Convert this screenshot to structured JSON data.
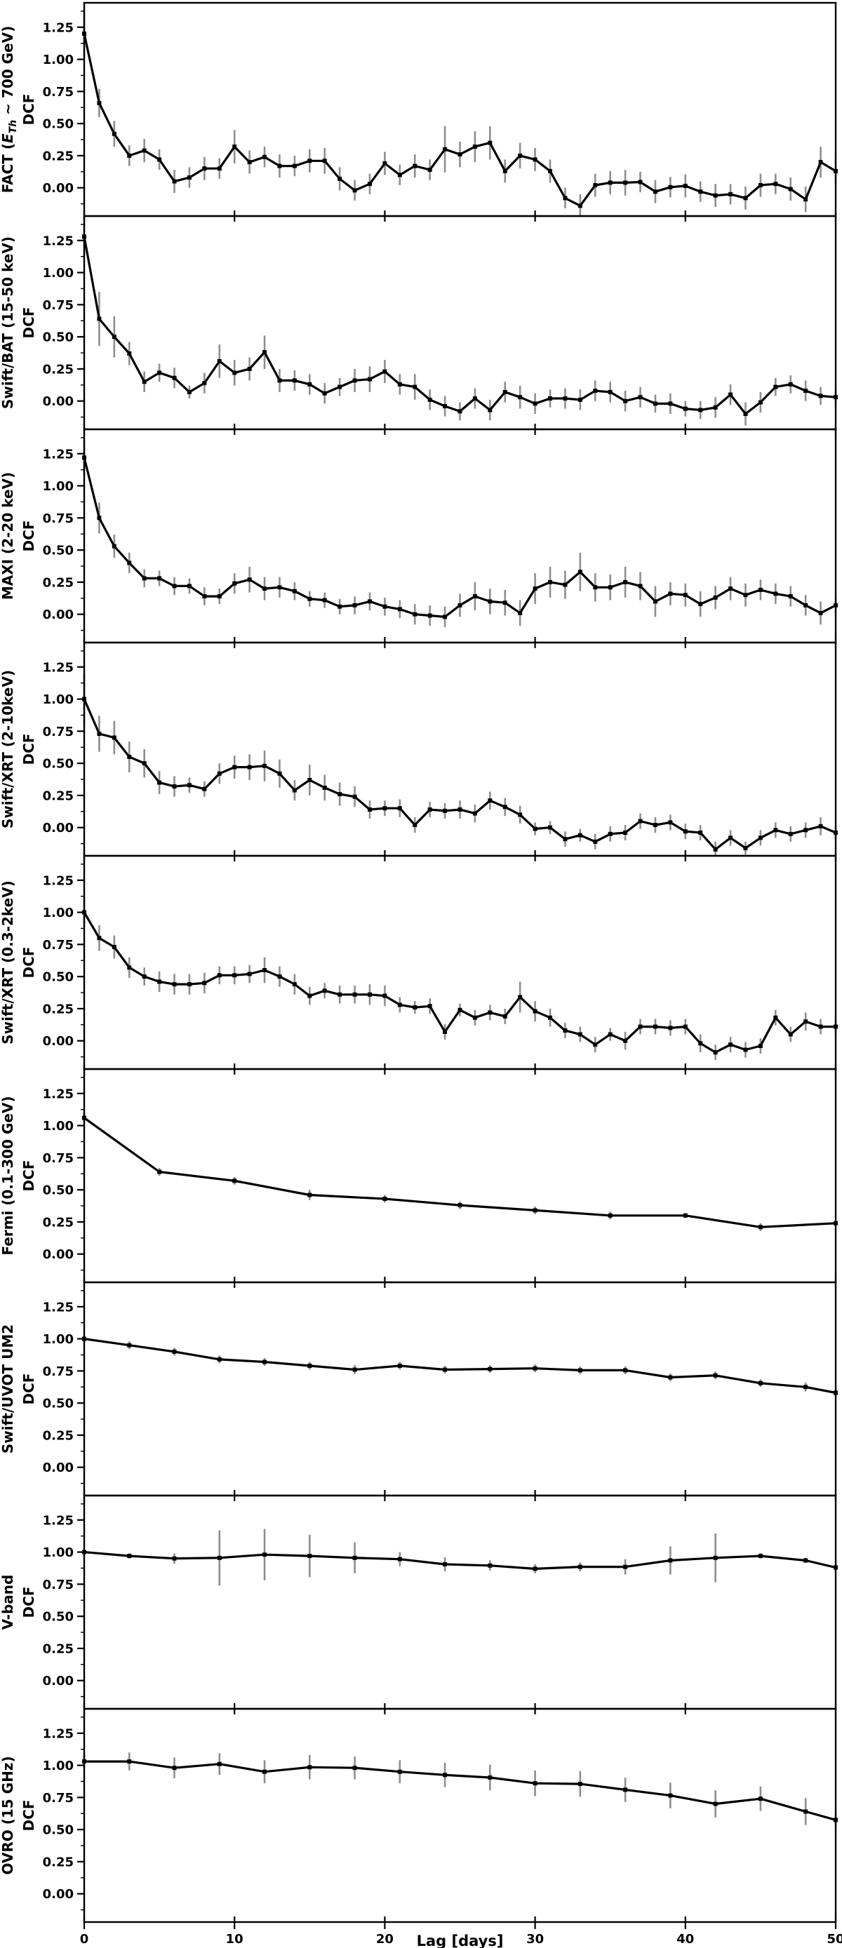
{
  "figure": {
    "xlabel": "Lag [days]",
    "colors": {
      "line": "#000000",
      "error_bar": "#8e8e8e",
      "background": "#ffffff",
      "frame": "#000000"
    }
  },
  "axes": {
    "xlim": [
      0,
      50
    ],
    "ylim": [
      -0.22,
      1.44
    ],
    "x_major_ticks": [
      0,
      10,
      20,
      30,
      40,
      50
    ],
    "x_tick_labels": [
      "0",
      "10",
      "20",
      "30",
      "40",
      "50"
    ],
    "y_major_ticks": [
      0.0,
      0.25,
      0.5,
      0.75,
      1.0,
      1.25
    ],
    "y_tick_labels": [
      "0.00",
      "0.25",
      "0.50",
      "0.75",
      "1.00",
      "1.25"
    ],
    "y_minor_step": 0.125,
    "grid": false,
    "legend": "none"
  },
  "chart_data": [
    {
      "type": "line",
      "name": "fact",
      "ylabel": "FACT (E_Th ~ 700 GeV)",
      "ylabel_parts": {
        "prefix": "FACT (",
        "var": "E",
        "sub": "Th",
        "suffix": " ∼ 700 GeV)"
      },
      "ylabel2": "DCF",
      "x": [
        0,
        1,
        2,
        3,
        4,
        5,
        6,
        7,
        8,
        9,
        10,
        11,
        12,
        13,
        14,
        15,
        16,
        17,
        18,
        19,
        20,
        21,
        22,
        23,
        24,
        25,
        26,
        27,
        28,
        29,
        30,
        31,
        32,
        33,
        34,
        35,
        36,
        37,
        38,
        39,
        40,
        41,
        42,
        43,
        44,
        45,
        46,
        47,
        48,
        49,
        50
      ],
      "y": [
        1.2,
        0.66,
        0.42,
        0.25,
        0.29,
        0.22,
        0.05,
        0.08,
        0.15,
        0.15,
        0.32,
        0.2,
        0.24,
        0.17,
        0.17,
        0.21,
        0.21,
        0.07,
        -0.02,
        0.03,
        0.19,
        0.1,
        0.17,
        0.14,
        0.3,
        0.26,
        0.32,
        0.35,
        0.13,
        0.25,
        0.22,
        0.13,
        -0.08,
        -0.14,
        0.02,
        0.04,
        0.04,
        0.045,
        -0.03,
        0.005,
        0.015,
        -0.03,
        -0.06,
        -0.05,
        -0.08,
        0.02,
        0.03,
        -0.01,
        -0.09,
        0.2,
        0.13
      ],
      "yerr": [
        0.18,
        0.11,
        0.1,
        0.08,
        0.09,
        0.08,
        0.09,
        0.08,
        0.09,
        0.08,
        0.13,
        0.09,
        0.08,
        0.09,
        0.08,
        0.09,
        0.1,
        0.09,
        0.08,
        0.08,
        0.09,
        0.08,
        0.09,
        0.08,
        0.18,
        0.1,
        0.12,
        0.13,
        0.09,
        0.1,
        0.09,
        0.09,
        0.08,
        0.09,
        0.09,
        0.09,
        0.1,
        0.08,
        0.09,
        0.08,
        0.09,
        0.08,
        0.09,
        0.08,
        0.09,
        0.09,
        0.08,
        0.09,
        0.1,
        0.12,
        0.1
      ]
    },
    {
      "type": "line",
      "name": "swift-bat",
      "ylabel": "Swift/BAT (15-50 keV)",
      "ylabel2": "DCF",
      "x": [
        0,
        1,
        2,
        3,
        4,
        5,
        6,
        7,
        8,
        9,
        10,
        11,
        12,
        13,
        14,
        15,
        16,
        17,
        18,
        19,
        20,
        21,
        22,
        23,
        24,
        25,
        26,
        27,
        28,
        29,
        30,
        31,
        32,
        33,
        34,
        35,
        36,
        37,
        38,
        39,
        40,
        41,
        42,
        43,
        44,
        45,
        46,
        47,
        48,
        49,
        50
      ],
      "y": [
        1.28,
        0.64,
        0.5,
        0.37,
        0.15,
        0.22,
        0.18,
        0.07,
        0.14,
        0.31,
        0.22,
        0.25,
        0.38,
        0.16,
        0.16,
        0.13,
        0.06,
        0.11,
        0.16,
        0.17,
        0.23,
        0.13,
        0.11,
        0.01,
        -0.04,
        -0.08,
        0.02,
        -0.07,
        0.07,
        0.03,
        -0.02,
        0.02,
        0.02,
        0.01,
        0.08,
        0.07,
        0.0,
        0.03,
        -0.02,
        -0.02,
        -0.06,
        -0.07,
        -0.05,
        0.05,
        -0.1,
        -0.01,
        0.11,
        0.13,
        0.08,
        0.04,
        0.03
      ],
      "yerr": [
        0.15,
        0.21,
        0.16,
        0.09,
        0.08,
        0.07,
        0.08,
        0.05,
        0.08,
        0.13,
        0.1,
        0.09,
        0.13,
        0.09,
        0.08,
        0.08,
        0.08,
        0.07,
        0.09,
        0.1,
        0.09,
        0.08,
        0.1,
        0.08,
        0.08,
        0.07,
        0.08,
        0.08,
        0.08,
        0.09,
        0.08,
        0.07,
        0.08,
        0.08,
        0.08,
        0.08,
        0.08,
        0.08,
        0.07,
        0.08,
        0.06,
        0.07,
        0.08,
        0.08,
        0.09,
        0.08,
        0.07,
        0.07,
        0.08,
        0.07,
        0.06
      ]
    },
    {
      "type": "line",
      "name": "maxi",
      "ylabel": "MAXI (2-20 keV)",
      "ylabel2": "DCF",
      "x": [
        0,
        1,
        2,
        3,
        4,
        5,
        6,
        7,
        8,
        9,
        10,
        11,
        12,
        13,
        14,
        15,
        16,
        17,
        18,
        19,
        20,
        21,
        22,
        23,
        24,
        25,
        26,
        27,
        28,
        29,
        30,
        31,
        32,
        33,
        34,
        35,
        36,
        37,
        38,
        39,
        40,
        41,
        42,
        43,
        44,
        45,
        46,
        47,
        48,
        49,
        50
      ],
      "y": [
        1.22,
        0.75,
        0.53,
        0.4,
        0.28,
        0.28,
        0.22,
        0.22,
        0.14,
        0.14,
        0.24,
        0.27,
        0.2,
        0.21,
        0.18,
        0.12,
        0.11,
        0.06,
        0.07,
        0.1,
        0.06,
        0.04,
        0.0,
        -0.01,
        -0.02,
        0.07,
        0.14,
        0.1,
        0.09,
        0.01,
        0.2,
        0.25,
        0.23,
        0.33,
        0.21,
        0.21,
        0.25,
        0.22,
        0.1,
        0.16,
        0.15,
        0.08,
        0.13,
        0.2,
        0.15,
        0.19,
        0.16,
        0.14,
        0.07,
        0.01,
        0.07
      ],
      "yerr": [
        0.14,
        0.12,
        0.09,
        0.08,
        0.07,
        0.06,
        0.07,
        0.06,
        0.07,
        0.06,
        0.08,
        0.1,
        0.09,
        0.08,
        0.07,
        0.06,
        0.06,
        0.06,
        0.07,
        0.07,
        0.07,
        0.07,
        0.08,
        0.08,
        0.08,
        0.09,
        0.11,
        0.1,
        0.1,
        0.1,
        0.12,
        0.12,
        0.11,
        0.15,
        0.11,
        0.1,
        0.12,
        0.11,
        0.12,
        0.09,
        0.09,
        0.1,
        0.09,
        0.09,
        0.09,
        0.08,
        0.08,
        0.08,
        0.08,
        0.09,
        0.06
      ]
    },
    {
      "type": "line",
      "name": "swift-xrt-hard",
      "ylabel": "Swift/XRT (2-10keV)",
      "ylabel2": "DCF",
      "x": [
        0,
        1,
        2,
        3,
        4,
        5,
        6,
        7,
        8,
        9,
        10,
        11,
        12,
        13,
        14,
        15,
        16,
        17,
        18,
        19,
        20,
        21,
        22,
        23,
        24,
        25,
        26,
        27,
        28,
        29,
        30,
        31,
        32,
        33,
        34,
        35,
        36,
        37,
        38,
        39,
        40,
        41,
        42,
        43,
        44,
        45,
        46,
        47,
        48,
        49,
        50
      ],
      "y": [
        1.0,
        0.73,
        0.7,
        0.55,
        0.5,
        0.35,
        0.32,
        0.33,
        0.3,
        0.42,
        0.47,
        0.47,
        0.48,
        0.42,
        0.29,
        0.37,
        0.31,
        0.26,
        0.24,
        0.14,
        0.15,
        0.15,
        0.02,
        0.14,
        0.13,
        0.14,
        0.11,
        0.21,
        0.16,
        0.1,
        -0.01,
        0.0,
        -0.09,
        -0.06,
        -0.11,
        -0.05,
        -0.04,
        0.05,
        0.02,
        0.04,
        -0.03,
        -0.04,
        -0.17,
        -0.08,
        -0.16,
        -0.08,
        -0.02,
        -0.05,
        -0.02,
        0.01,
        -0.04
      ],
      "yerr": [
        0.2,
        0.14,
        0.13,
        0.12,
        0.11,
        0.09,
        0.08,
        0.06,
        0.06,
        0.08,
        0.09,
        0.1,
        0.12,
        0.11,
        0.08,
        0.12,
        0.1,
        0.09,
        0.08,
        0.07,
        0.06,
        0.07,
        0.06,
        0.06,
        0.06,
        0.07,
        0.07,
        0.07,
        0.07,
        0.07,
        0.05,
        0.05,
        0.06,
        0.05,
        0.06,
        0.06,
        0.06,
        0.06,
        0.06,
        0.06,
        0.06,
        0.06,
        0.06,
        0.06,
        0.05,
        0.06,
        0.06,
        0.06,
        0.06,
        0.07,
        0.05
      ]
    },
    {
      "type": "line",
      "name": "swift-xrt-soft",
      "ylabel": "Swift/XRT (0.3-2keV)",
      "ylabel2": "DCF",
      "x": [
        0,
        1,
        2,
        3,
        4,
        5,
        6,
        7,
        8,
        9,
        10,
        11,
        12,
        13,
        14,
        15,
        16,
        17,
        18,
        19,
        20,
        21,
        22,
        23,
        24,
        25,
        26,
        27,
        28,
        29,
        30,
        31,
        32,
        33,
        34,
        35,
        36,
        37,
        38,
        39,
        40,
        41,
        42,
        43,
        44,
        45,
        46,
        47,
        48,
        49,
        50
      ],
      "y": [
        1.0,
        0.8,
        0.73,
        0.57,
        0.5,
        0.46,
        0.44,
        0.44,
        0.45,
        0.51,
        0.51,
        0.52,
        0.55,
        0.5,
        0.44,
        0.35,
        0.39,
        0.36,
        0.36,
        0.36,
        0.35,
        0.28,
        0.26,
        0.27,
        0.07,
        0.24,
        0.18,
        0.22,
        0.19,
        0.34,
        0.23,
        0.18,
        0.08,
        0.05,
        -0.03,
        0.05,
        0.0,
        0.11,
        0.11,
        0.1,
        0.11,
        -0.02,
        -0.09,
        -0.03,
        -0.07,
        -0.04,
        0.18,
        0.05,
        0.15,
        0.11,
        0.11
      ],
      "yerr": [
        0.1,
        0.1,
        0.09,
        0.08,
        0.07,
        0.08,
        0.08,
        0.08,
        0.08,
        0.07,
        0.07,
        0.07,
        0.1,
        0.08,
        0.08,
        0.07,
        0.06,
        0.07,
        0.07,
        0.08,
        0.08,
        0.06,
        0.05,
        0.06,
        0.06,
        0.05,
        0.06,
        0.06,
        0.06,
        0.12,
        0.08,
        0.07,
        0.06,
        0.06,
        0.06,
        0.05,
        0.07,
        0.06,
        0.06,
        0.06,
        0.06,
        0.07,
        0.06,
        0.06,
        0.06,
        0.06,
        0.06,
        0.06,
        0.07,
        0.06,
        0.05
      ]
    },
    {
      "type": "line",
      "name": "fermi",
      "ylabel": "Fermi (0.1-300 GeV)",
      "ylabel2": "DCF",
      "x": [
        0,
        5,
        10,
        15,
        20,
        25,
        30,
        35,
        40,
        45,
        50
      ],
      "y": [
        1.06,
        0.64,
        0.57,
        0.46,
        0.43,
        0.38,
        0.34,
        0.3,
        0.3,
        0.21,
        0.24
      ],
      "yerr": [
        0.04,
        0.03,
        0.03,
        0.04,
        0.03,
        0.03,
        0.03,
        0.03,
        0.02,
        0.03,
        0.02
      ]
    },
    {
      "type": "line",
      "name": "swift-uvot-um2",
      "ylabel": "Swift/UVOT UM2",
      "ylabel2": "DCF",
      "x": [
        0,
        3,
        6,
        9,
        12,
        15,
        18,
        21,
        24,
        27,
        30,
        33,
        36,
        39,
        42,
        45,
        48,
        50
      ],
      "y": [
        1.0,
        0.95,
        0.9,
        0.84,
        0.82,
        0.79,
        0.76,
        0.79,
        0.76,
        0.765,
        0.77,
        0.755,
        0.755,
        0.7,
        0.715,
        0.655,
        0.625,
        0.58
      ],
      "yerr": [
        0.02,
        0.03,
        0.03,
        0.03,
        0.03,
        0.03,
        0.035,
        0.03,
        0.03,
        0.03,
        0.03,
        0.03,
        0.03,
        0.03,
        0.03,
        0.03,
        0.035,
        0.03
      ]
    },
    {
      "type": "line",
      "name": "v-band",
      "ylabel": "V-band",
      "ylabel2": "DCF",
      "x": [
        0,
        3,
        6,
        9,
        12,
        15,
        18,
        21,
        24,
        27,
        30,
        33,
        36,
        39,
        42,
        45,
        48,
        50
      ],
      "y": [
        1.0,
        0.97,
        0.95,
        0.955,
        0.98,
        0.97,
        0.955,
        0.945,
        0.905,
        0.895,
        0.87,
        0.885,
        0.885,
        0.935,
        0.955,
        0.97,
        0.935,
        0.88
      ],
      "yerr": [
        0.015,
        0.02,
        0.04,
        0.215,
        0.2,
        0.165,
        0.12,
        0.055,
        0.055,
        0.04,
        0.035,
        0.035,
        0.06,
        0.11,
        0.19,
        0.02,
        0.02,
        0.02
      ]
    },
    {
      "type": "line",
      "name": "ovro",
      "ylabel": "OVRO (15 GHz)",
      "ylabel2": "DCF",
      "x": [
        0,
        3,
        6,
        9,
        12,
        15,
        18,
        21,
        24,
        27,
        30,
        33,
        36,
        39,
        42,
        45,
        48,
        50
      ],
      "y": [
        1.03,
        1.03,
        0.98,
        1.01,
        0.95,
        0.985,
        0.98,
        0.95,
        0.925,
        0.905,
        0.86,
        0.855,
        0.81,
        0.765,
        0.7,
        0.74,
        0.64,
        0.575
      ],
      "yerr": [
        0.055,
        0.07,
        0.08,
        0.085,
        0.09,
        0.095,
        0.09,
        0.09,
        0.095,
        0.1,
        0.1,
        0.1,
        0.095,
        0.1,
        0.105,
        0.095,
        0.105,
        0.05
      ]
    }
  ]
}
